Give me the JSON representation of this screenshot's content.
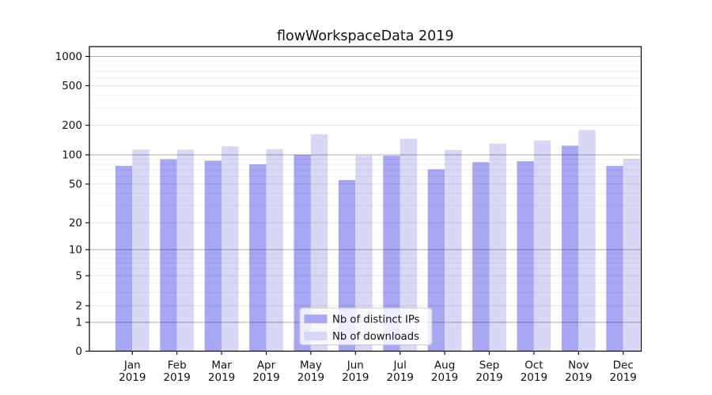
{
  "chart_data": {
    "type": "bar",
    "title": "flowWorkspaceData 2019",
    "categories": [
      "Jan",
      "Feb",
      "Mar",
      "Apr",
      "May",
      "Jun",
      "Jul",
      "Aug",
      "Sep",
      "Oct",
      "Nov",
      "Dec"
    ],
    "category_year": "2019",
    "series": [
      {
        "name": "Nb of distinct IPs",
        "color": "#a7a7f3",
        "values": [
          77,
          90,
          87,
          80,
          100,
          55,
          98,
          71,
          84,
          86,
          124,
          77
        ]
      },
      {
        "name": "Nb of downloads",
        "color": "#d8d8f6",
        "values": [
          113,
          113,
          122,
          114,
          162,
          98,
          146,
          112,
          130,
          140,
          179,
          91
        ]
      }
    ],
    "yaxis": {
      "scale": "symlog",
      "tick_values": [
        0,
        1,
        2,
        5,
        10,
        20,
        50,
        100,
        200,
        500,
        1000
      ],
      "tick_labels": [
        "0",
        "1",
        "2",
        "5",
        "10",
        "20",
        "50",
        "100",
        "200",
        "500",
        "1000"
      ]
    },
    "legend": {
      "position": "lower center",
      "entries": [
        "Nb of distinct IPs",
        "Nb of downloads"
      ]
    },
    "grid": "on"
  }
}
